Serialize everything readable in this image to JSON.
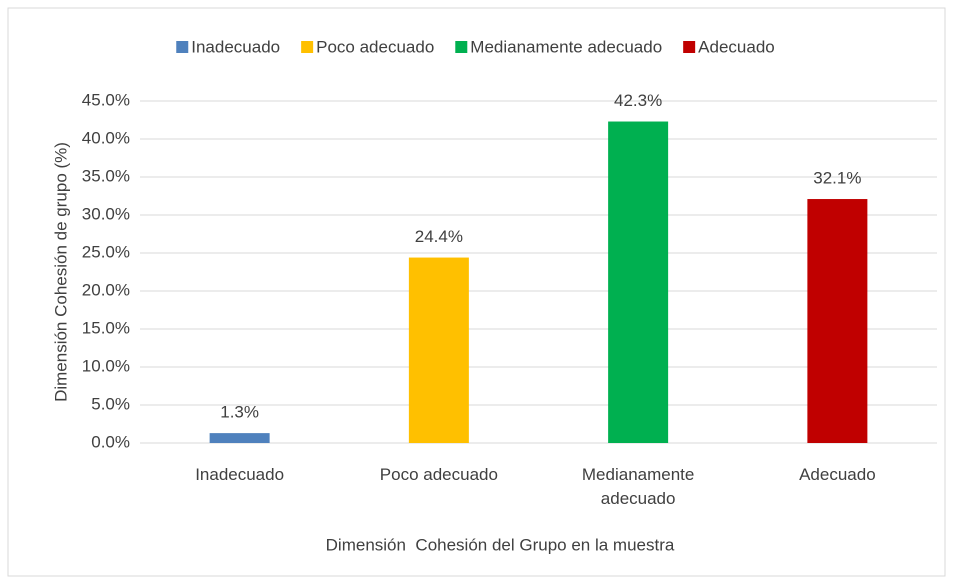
{
  "chart_data": {
    "type": "bar",
    "categories": [
      "Inadecuado",
      "Poco adecuado",
      "Medianamente adecuado",
      "Adecuado"
    ],
    "values": [
      1.3,
      24.4,
      42.3,
      32.1
    ],
    "value_labels": [
      "1.3%",
      "24.4%",
      "42.3%",
      "32.1%"
    ],
    "colors": [
      "#4f81bd",
      "#ffc000",
      "#00b050",
      "#c00000"
    ],
    "ylim": [
      0,
      45
    ],
    "yticks": [
      {
        "value": 0,
        "label": "0.0%"
      },
      {
        "value": 5,
        "label": "5.0%"
      },
      {
        "value": 10,
        "label": "10.0%"
      },
      {
        "value": 15,
        "label": "15.0%"
      },
      {
        "value": 20,
        "label": "20.0%"
      },
      {
        "value": 25,
        "label": "25.0%"
      },
      {
        "value": 30,
        "label": "30.0%"
      },
      {
        "value": 35,
        "label": "35.0%"
      },
      {
        "value": 40,
        "label": "40.0%"
      },
      {
        "value": 45,
        "label": "45.0%"
      }
    ],
    "ylabel": "Dimensión Cohesión de grupo (%)",
    "xlabel": "Dimensión  Cohesión del Grupo en la muestra",
    "grid": true,
    "legend": "top"
  }
}
